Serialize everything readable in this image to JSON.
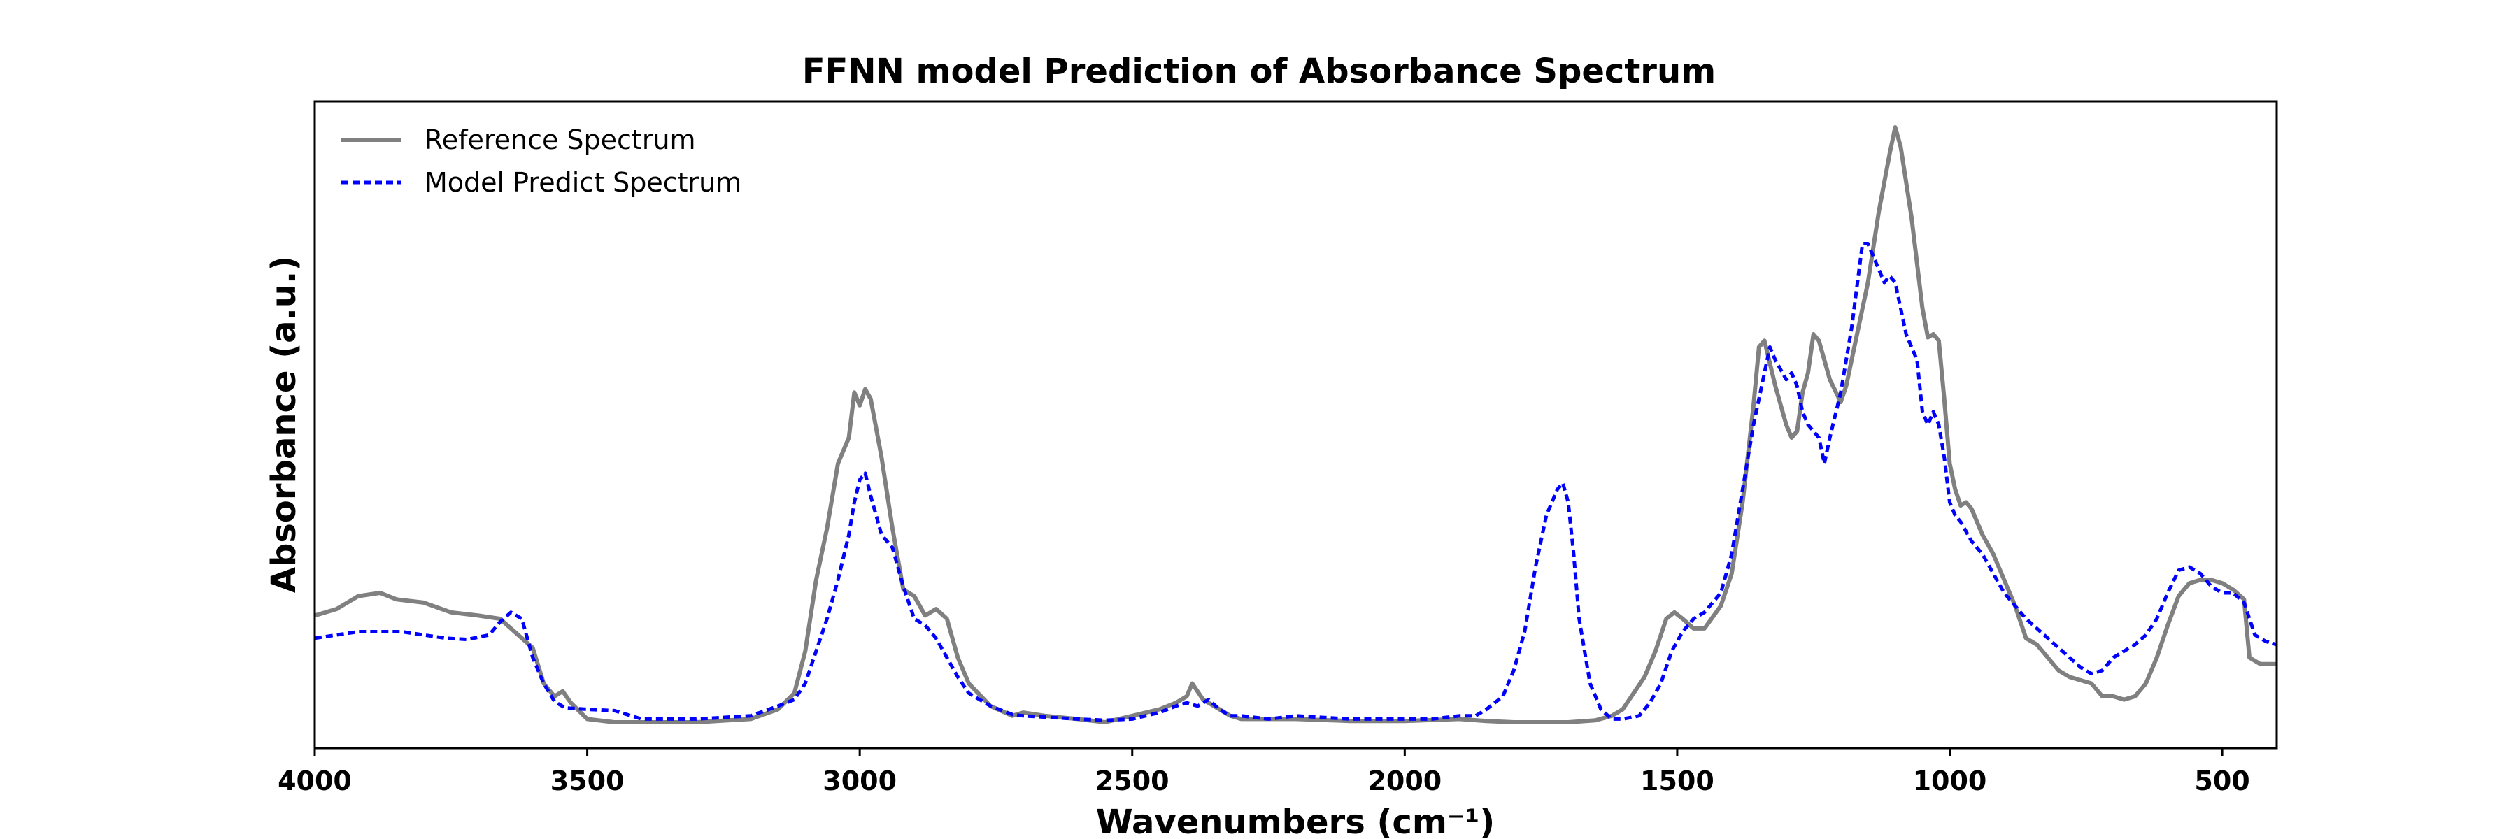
{
  "chart_data": {
    "type": "line",
    "title": "FFNN model Prediction of Absorbance Spectrum",
    "xlabel": "Wavenumbers (cm⁻¹)",
    "ylabel": "Absorbance (a.u.)",
    "xlim": [
      4000,
      400
    ],
    "ylim": [
      0,
      1
    ],
    "x_inverted": true,
    "x_ticks": [
      4000,
      3500,
      3000,
      2500,
      2000,
      1500,
      1000,
      500
    ],
    "y_ticks_shown": false,
    "grid": false,
    "legend_position": "top-left",
    "colors": {
      "reference": "#808080",
      "predict": "#0000ff"
    },
    "series": [
      {
        "name": "Reference Spectrum",
        "style": "solid",
        "points": [
          [
            4000,
            0.205
          ],
          [
            3960,
            0.215
          ],
          [
            3920,
            0.235
          ],
          [
            3880,
            0.24
          ],
          [
            3850,
            0.23
          ],
          [
            3800,
            0.225
          ],
          [
            3750,
            0.21
          ],
          [
            3700,
            0.205
          ],
          [
            3660,
            0.2
          ],
          [
            3620,
            0.17
          ],
          [
            3600,
            0.155
          ],
          [
            3580,
            0.1
          ],
          [
            3560,
            0.08
          ],
          [
            3545,
            0.088
          ],
          [
            3530,
            0.07
          ],
          [
            3500,
            0.045
          ],
          [
            3450,
            0.04
          ],
          [
            3400,
            0.04
          ],
          [
            3300,
            0.04
          ],
          [
            3200,
            0.045
          ],
          [
            3150,
            0.06
          ],
          [
            3120,
            0.085
          ],
          [
            3100,
            0.15
          ],
          [
            3080,
            0.26
          ],
          [
            3060,
            0.34
          ],
          [
            3040,
            0.44
          ],
          [
            3020,
            0.48
          ],
          [
            3010,
            0.55
          ],
          [
            3000,
            0.53
          ],
          [
            2990,
            0.555
          ],
          [
            2980,
            0.54
          ],
          [
            2960,
            0.45
          ],
          [
            2940,
            0.34
          ],
          [
            2920,
            0.245
          ],
          [
            2900,
            0.235
          ],
          [
            2880,
            0.205
          ],
          [
            2860,
            0.215
          ],
          [
            2840,
            0.2
          ],
          [
            2820,
            0.14
          ],
          [
            2800,
            0.1
          ],
          [
            2760,
            0.065
          ],
          [
            2720,
            0.05
          ],
          [
            2700,
            0.055
          ],
          [
            2660,
            0.05
          ],
          [
            2600,
            0.045
          ],
          [
            2550,
            0.04
          ],
          [
            2500,
            0.05
          ],
          [
            2450,
            0.06
          ],
          [
            2420,
            0.07
          ],
          [
            2400,
            0.08
          ],
          [
            2390,
            0.1
          ],
          [
            2370,
            0.075
          ],
          [
            2340,
            0.06
          ],
          [
            2320,
            0.05
          ],
          [
            2300,
            0.045
          ],
          [
            2250,
            0.045
          ],
          [
            2200,
            0.045
          ],
          [
            2100,
            0.042
          ],
          [
            2000,
            0.042
          ],
          [
            1900,
            0.045
          ],
          [
            1850,
            0.042
          ],
          [
            1800,
            0.04
          ],
          [
            1750,
            0.04
          ],
          [
            1700,
            0.04
          ],
          [
            1650,
            0.043
          ],
          [
            1620,
            0.05
          ],
          [
            1600,
            0.06
          ],
          [
            1580,
            0.085
          ],
          [
            1560,
            0.11
          ],
          [
            1540,
            0.15
          ],
          [
            1520,
            0.2
          ],
          [
            1505,
            0.21
          ],
          [
            1490,
            0.2
          ],
          [
            1470,
            0.185
          ],
          [
            1450,
            0.185
          ],
          [
            1420,
            0.22
          ],
          [
            1400,
            0.27
          ],
          [
            1380,
            0.38
          ],
          [
            1360,
            0.53
          ],
          [
            1350,
            0.62
          ],
          [
            1340,
            0.63
          ],
          [
            1320,
            0.56
          ],
          [
            1300,
            0.5
          ],
          [
            1290,
            0.48
          ],
          [
            1280,
            0.49
          ],
          [
            1270,
            0.55
          ],
          [
            1260,
            0.58
          ],
          [
            1250,
            0.64
          ],
          [
            1240,
            0.63
          ],
          [
            1220,
            0.57
          ],
          [
            1200,
            0.535
          ],
          [
            1190,
            0.56
          ],
          [
            1170,
            0.64
          ],
          [
            1150,
            0.72
          ],
          [
            1130,
            0.83
          ],
          [
            1110,
            0.92
          ],
          [
            1100,
            0.96
          ],
          [
            1090,
            0.93
          ],
          [
            1070,
            0.82
          ],
          [
            1050,
            0.68
          ],
          [
            1040,
            0.635
          ],
          [
            1030,
            0.64
          ],
          [
            1020,
            0.63
          ],
          [
            1010,
            0.54
          ],
          [
            1000,
            0.44
          ],
          [
            990,
            0.4
          ],
          [
            980,
            0.375
          ],
          [
            970,
            0.38
          ],
          [
            960,
            0.37
          ],
          [
            940,
            0.33
          ],
          [
            920,
            0.3
          ],
          [
            900,
            0.26
          ],
          [
            880,
            0.22
          ],
          [
            860,
            0.17
          ],
          [
            840,
            0.16
          ],
          [
            820,
            0.14
          ],
          [
            800,
            0.12
          ],
          [
            780,
            0.11
          ],
          [
            760,
            0.105
          ],
          [
            740,
            0.1
          ],
          [
            720,
            0.08
          ],
          [
            700,
            0.08
          ],
          [
            680,
            0.075
          ],
          [
            660,
            0.08
          ],
          [
            640,
            0.1
          ],
          [
            620,
            0.14
          ],
          [
            600,
            0.19
          ],
          [
            580,
            0.235
          ],
          [
            560,
            0.255
          ],
          [
            540,
            0.26
          ],
          [
            520,
            0.26
          ],
          [
            500,
            0.255
          ],
          [
            480,
            0.245
          ],
          [
            460,
            0.23
          ],
          [
            450,
            0.14
          ],
          [
            430,
            0.13
          ],
          [
            400,
            0.13
          ]
        ]
      },
      {
        "name": "Model Predict Spectrum",
        "style": "dashed",
        "points": [
          [
            4000,
            0.17
          ],
          [
            3960,
            0.175
          ],
          [
            3920,
            0.18
          ],
          [
            3880,
            0.18
          ],
          [
            3840,
            0.18
          ],
          [
            3800,
            0.175
          ],
          [
            3760,
            0.17
          ],
          [
            3720,
            0.168
          ],
          [
            3680,
            0.175
          ],
          [
            3660,
            0.195
          ],
          [
            3640,
            0.21
          ],
          [
            3620,
            0.2
          ],
          [
            3600,
            0.14
          ],
          [
            3580,
            0.1
          ],
          [
            3560,
            0.072
          ],
          [
            3540,
            0.062
          ],
          [
            3500,
            0.06
          ],
          [
            3450,
            0.058
          ],
          [
            3400,
            0.045
          ],
          [
            3300,
            0.045
          ],
          [
            3200,
            0.05
          ],
          [
            3150,
            0.065
          ],
          [
            3120,
            0.075
          ],
          [
            3100,
            0.1
          ],
          [
            3080,
            0.15
          ],
          [
            3060,
            0.2
          ],
          [
            3040,
            0.26
          ],
          [
            3020,
            0.33
          ],
          [
            3010,
            0.38
          ],
          [
            3000,
            0.415
          ],
          [
            2990,
            0.425
          ],
          [
            2980,
            0.39
          ],
          [
            2960,
            0.33
          ],
          [
            2940,
            0.31
          ],
          [
            2920,
            0.25
          ],
          [
            2900,
            0.2
          ],
          [
            2880,
            0.19
          ],
          [
            2860,
            0.17
          ],
          [
            2840,
            0.14
          ],
          [
            2820,
            0.11
          ],
          [
            2800,
            0.085
          ],
          [
            2760,
            0.065
          ],
          [
            2720,
            0.052
          ],
          [
            2700,
            0.05
          ],
          [
            2660,
            0.048
          ],
          [
            2600,
            0.045
          ],
          [
            2550,
            0.043
          ],
          [
            2500,
            0.045
          ],
          [
            2450,
            0.055
          ],
          [
            2420,
            0.065
          ],
          [
            2400,
            0.07
          ],
          [
            2380,
            0.065
          ],
          [
            2360,
            0.075
          ],
          [
            2340,
            0.06
          ],
          [
            2320,
            0.05
          ],
          [
            2300,
            0.05
          ],
          [
            2250,
            0.045
          ],
          [
            2200,
            0.05
          ],
          [
            2100,
            0.045
          ],
          [
            2000,
            0.045
          ],
          [
            1950,
            0.045
          ],
          [
            1900,
            0.05
          ],
          [
            1870,
            0.05
          ],
          [
            1850,
            0.06
          ],
          [
            1820,
            0.08
          ],
          [
            1800,
            0.12
          ],
          [
            1780,
            0.18
          ],
          [
            1760,
            0.28
          ],
          [
            1740,
            0.36
          ],
          [
            1720,
            0.4
          ],
          [
            1710,
            0.41
          ],
          [
            1700,
            0.38
          ],
          [
            1690,
            0.3
          ],
          [
            1680,
            0.2
          ],
          [
            1660,
            0.1
          ],
          [
            1640,
            0.06
          ],
          [
            1620,
            0.045
          ],
          [
            1600,
            0.045
          ],
          [
            1570,
            0.05
          ],
          [
            1550,
            0.07
          ],
          [
            1530,
            0.1
          ],
          [
            1510,
            0.15
          ],
          [
            1490,
            0.18
          ],
          [
            1470,
            0.2
          ],
          [
            1450,
            0.21
          ],
          [
            1420,
            0.24
          ],
          [
            1400,
            0.3
          ],
          [
            1380,
            0.4
          ],
          [
            1360,
            0.5
          ],
          [
            1340,
            0.58
          ],
          [
            1330,
            0.62
          ],
          [
            1320,
            0.6
          ],
          [
            1300,
            0.57
          ],
          [
            1290,
            0.58
          ],
          [
            1280,
            0.56
          ],
          [
            1270,
            0.52
          ],
          [
            1260,
            0.5
          ],
          [
            1240,
            0.48
          ],
          [
            1230,
            0.44
          ],
          [
            1220,
            0.48
          ],
          [
            1200,
            0.55
          ],
          [
            1180,
            0.65
          ],
          [
            1160,
            0.78
          ],
          [
            1150,
            0.78
          ],
          [
            1140,
            0.76
          ],
          [
            1130,
            0.74
          ],
          [
            1120,
            0.72
          ],
          [
            1110,
            0.73
          ],
          [
            1100,
            0.72
          ],
          [
            1090,
            0.68
          ],
          [
            1080,
            0.64
          ],
          [
            1060,
            0.6
          ],
          [
            1050,
            0.52
          ],
          [
            1040,
            0.5
          ],
          [
            1030,
            0.52
          ],
          [
            1020,
            0.5
          ],
          [
            1010,
            0.45
          ],
          [
            1000,
            0.38
          ],
          [
            990,
            0.36
          ],
          [
            980,
            0.35
          ],
          [
            960,
            0.32
          ],
          [
            940,
            0.3
          ],
          [
            920,
            0.27
          ],
          [
            900,
            0.24
          ],
          [
            880,
            0.22
          ],
          [
            860,
            0.2
          ],
          [
            840,
            0.185
          ],
          [
            820,
            0.17
          ],
          [
            800,
            0.155
          ],
          [
            780,
            0.14
          ],
          [
            760,
            0.125
          ],
          [
            740,
            0.115
          ],
          [
            720,
            0.12
          ],
          [
            700,
            0.14
          ],
          [
            680,
            0.15
          ],
          [
            660,
            0.16
          ],
          [
            640,
            0.175
          ],
          [
            620,
            0.2
          ],
          [
            600,
            0.24
          ],
          [
            580,
            0.275
          ],
          [
            560,
            0.28
          ],
          [
            540,
            0.27
          ],
          [
            520,
            0.25
          ],
          [
            500,
            0.24
          ],
          [
            480,
            0.24
          ],
          [
            460,
            0.225
          ],
          [
            440,
            0.175
          ],
          [
            420,
            0.165
          ],
          [
            400,
            0.16
          ]
        ]
      }
    ]
  }
}
